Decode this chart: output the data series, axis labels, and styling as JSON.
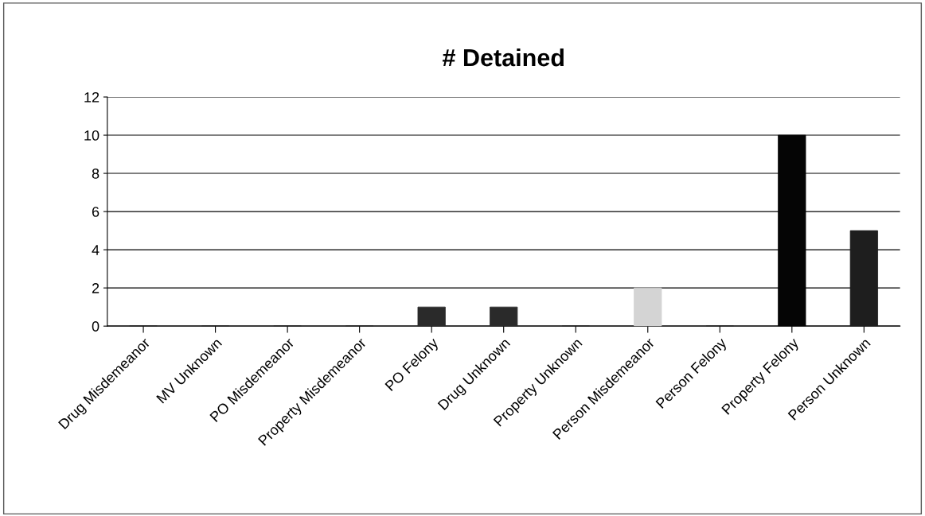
{
  "chart_data": {
    "type": "bar",
    "title": "# Detained",
    "categories": [
      "Drug Misdemeanor",
      "MV Unknown",
      "PO Misdemeanor",
      "Property Misdemeanor",
      "PO Felony",
      "Drug Unknown",
      "Property Unknown",
      "Person Misdemeanor",
      "Person Felony",
      "Property Felony",
      "Person Unknown"
    ],
    "values": [
      0,
      0,
      0,
      0,
      1,
      1,
      0,
      2,
      0,
      10,
      5
    ],
    "colors": [
      "#222222",
      "#222222",
      "#222222",
      "#222222",
      "#2a2a2a",
      "#2a2a2a",
      "#222222",
      "#d4d4d4",
      "#222222",
      "#050505",
      "#1e1e1e"
    ],
    "ylim": [
      0,
      12
    ],
    "yticks": [
      0,
      2,
      4,
      6,
      8,
      10,
      12
    ],
    "grid": "y",
    "legend": false
  }
}
